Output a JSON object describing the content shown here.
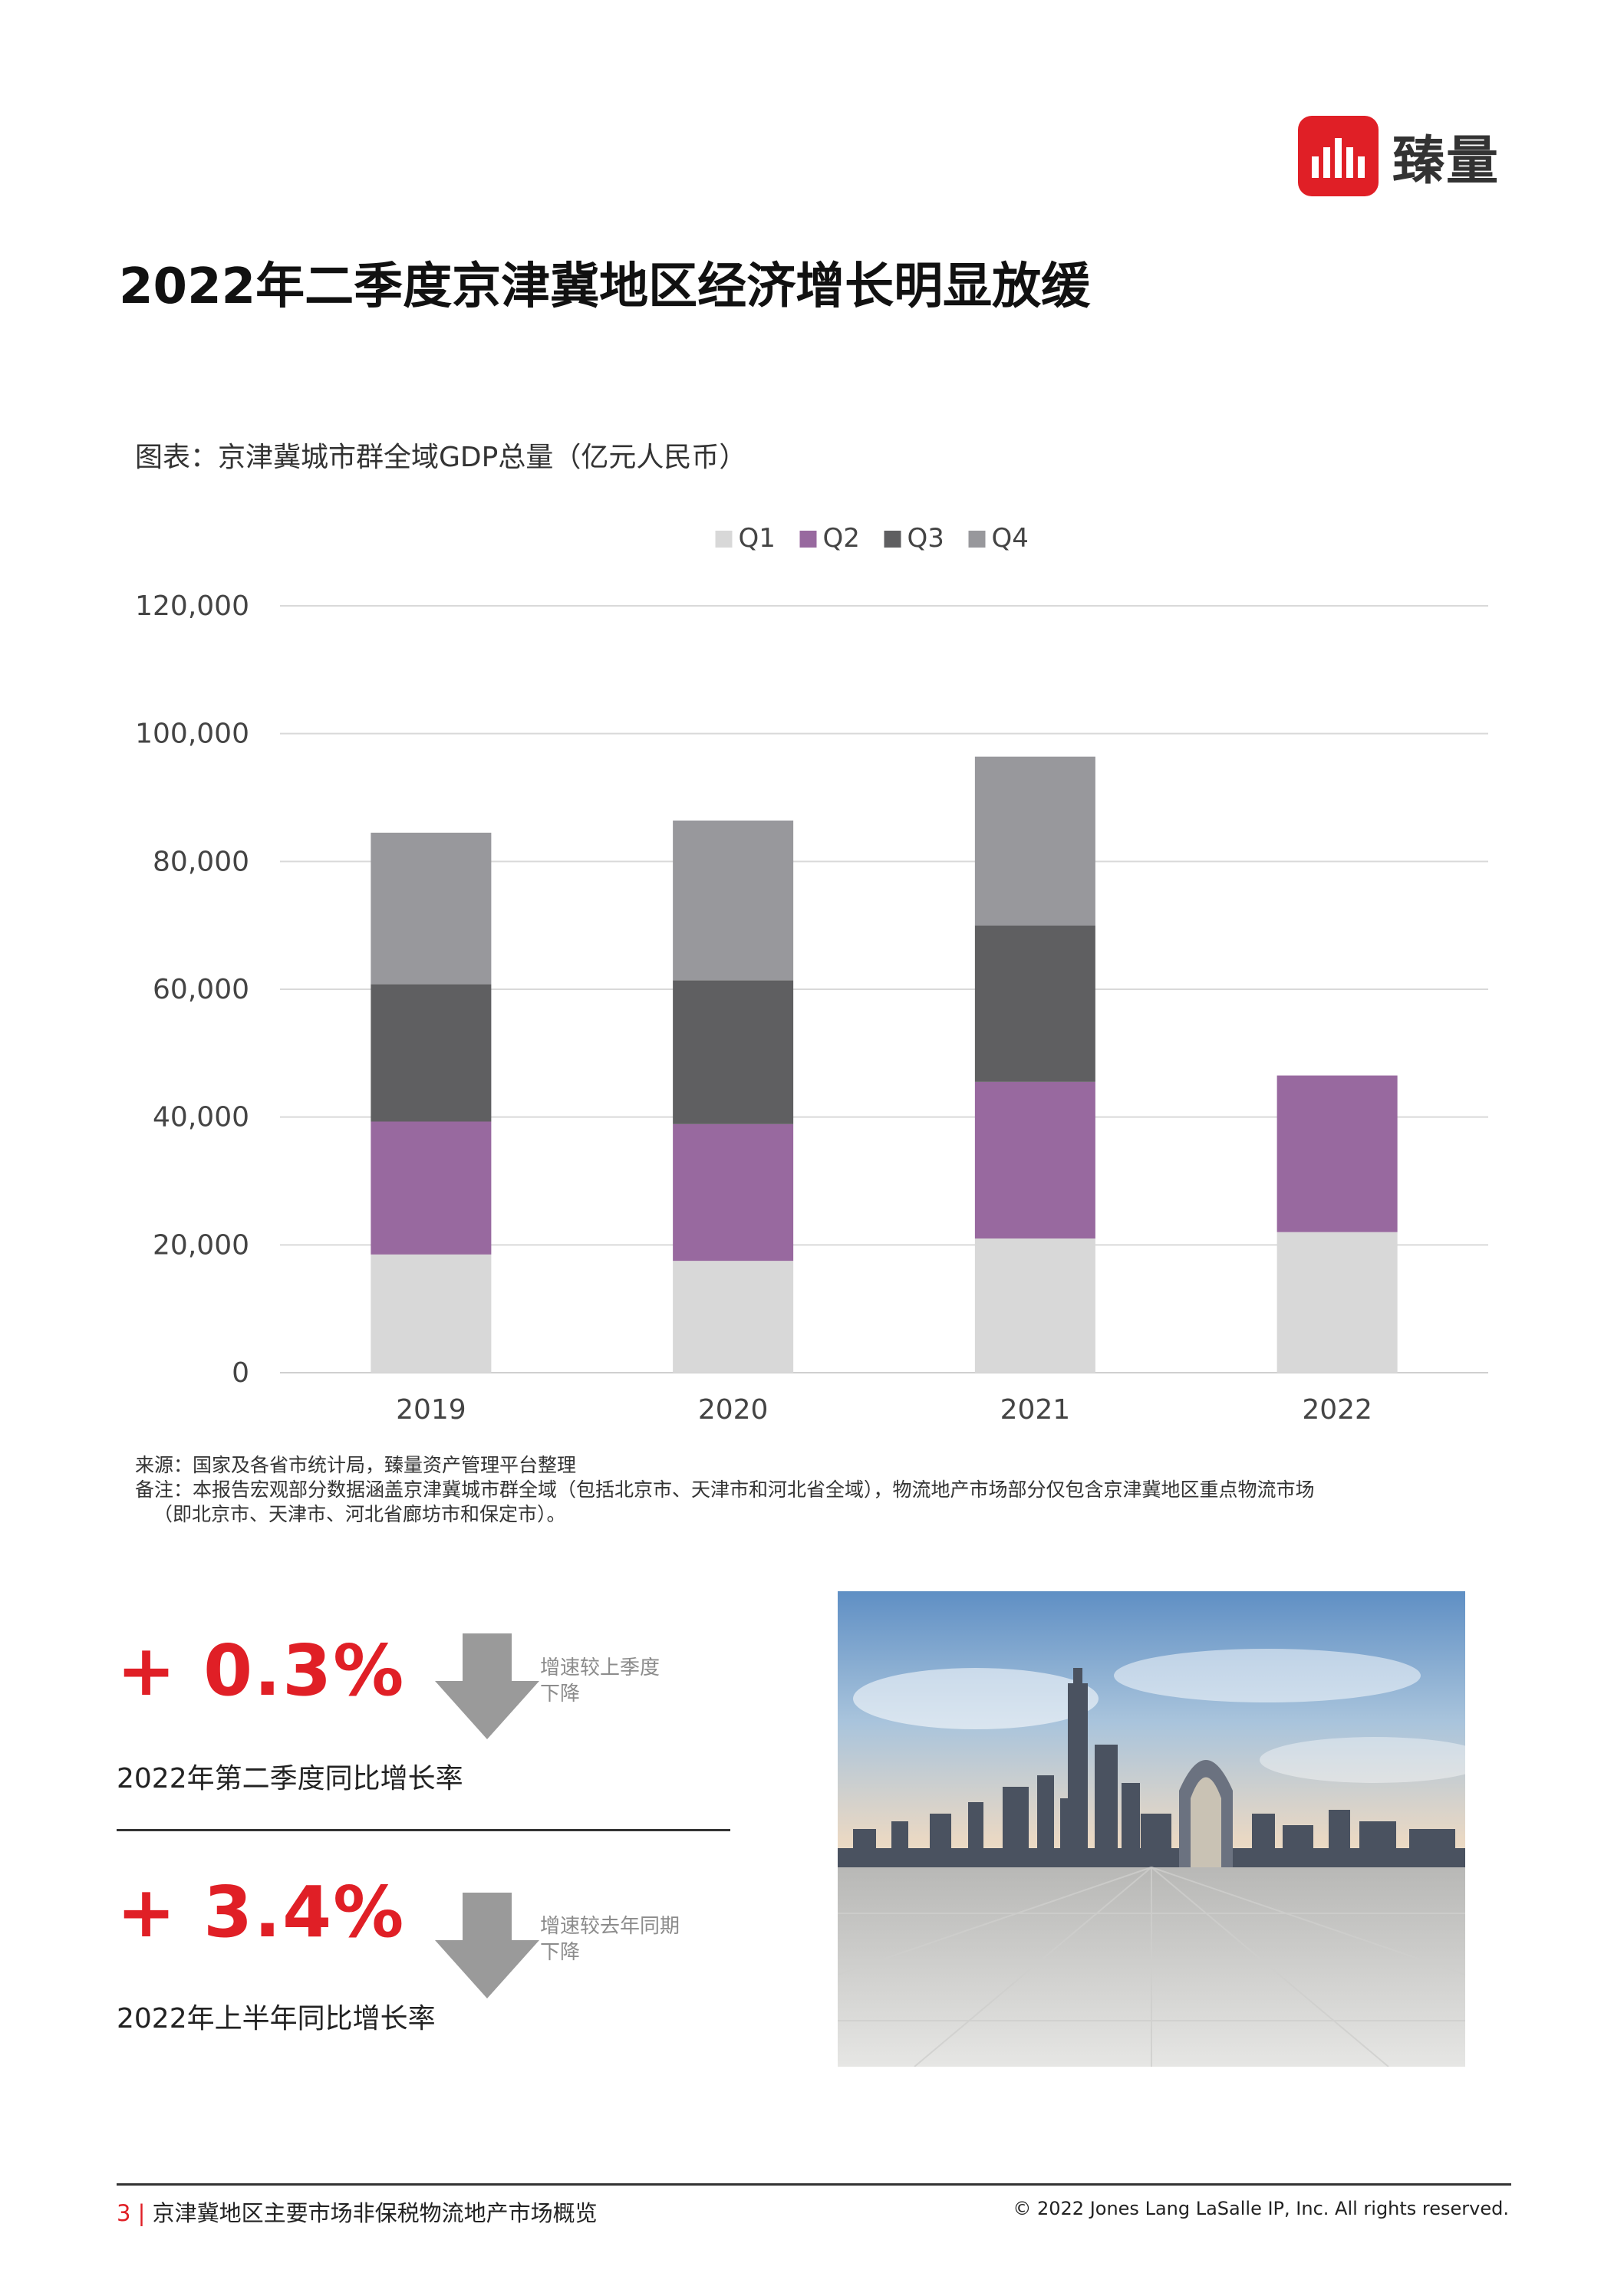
{
  "brand": {
    "name": "臻量"
  },
  "page": {
    "title": "2022年二季度京津冀地区经济增长明显放缓"
  },
  "chart_caption": "图表：京津冀城市群全域GDP总量（亿元人民币）",
  "chart_data": {
    "type": "bar",
    "stacked": true,
    "categories": [
      "2019",
      "2020",
      "2021",
      "2022"
    ],
    "series": [
      {
        "name": "Q1",
        "color": "#d8d8d8",
        "values": [
          18500,
          17500,
          21000,
          22000
        ]
      },
      {
        "name": "Q2",
        "color": "#98699f",
        "values": [
          20800,
          21400,
          24500,
          24500
        ]
      },
      {
        "name": "Q3",
        "color": "#5f5f61",
        "values": [
          21500,
          22500,
          24500,
          null
        ]
      },
      {
        "name": "Q4",
        "color": "#98989c",
        "values": [
          23700,
          25000,
          26400,
          null
        ]
      }
    ],
    "ylim": [
      0,
      120000
    ],
    "yticks": [
      "0",
      "20,000",
      "40,000",
      "60,000",
      "80,000",
      "100,000",
      "120,000"
    ],
    "legend": "top",
    "grid": true
  },
  "notes": {
    "source": "来源：国家及各省市统计局，臻量资产管理平台整理",
    "remark_line1": "备注：本报告宏观部分数据涵盖京津冀城市群全域（包括北京市、天津市和河北省全域），物流地产市场部分仅包含京津冀地区重点物流市场",
    "remark_line2": "（即北京市、天津市、河北省廊坊市和保定市）。"
  },
  "kpis": [
    {
      "value": "+ 0.3%",
      "note_line1": "增速较上季度",
      "note_line2": "下降",
      "label": "2022年第二季度同比增长率"
    },
    {
      "value": "+ 3.4%",
      "note_line1": "增速较去年同期",
      "note_line2": "下降",
      "label": "2022年上半年同比增长率"
    }
  ],
  "footer": {
    "page_number": "3",
    "report_title": "京津冀地区主要市场非保税物流地产市场概览",
    "copyright": "© 2022 Jones Lang LaSalle IP, Inc. All rights reserved."
  }
}
